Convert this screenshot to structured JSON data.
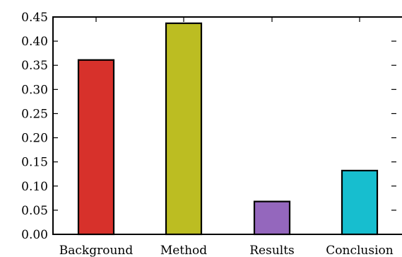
{
  "chart_data": {
    "type": "bar",
    "categories": [
      "Background",
      "Method",
      "Results",
      "Conclusion"
    ],
    "values": [
      0.361,
      0.437,
      0.068,
      0.132
    ],
    "colors": [
      "#d7312b",
      "#bcbd22",
      "#9467bd",
      "#17becf"
    ],
    "ylim": [
      0,
      0.45
    ],
    "yticks": [
      "0.00",
      "0.05",
      "0.10",
      "0.15",
      "0.20",
      "0.25",
      "0.30",
      "0.35",
      "0.40",
      "0.45"
    ],
    "title": "",
    "xlabel": "",
    "ylabel": "",
    "grid": false,
    "legend": "none"
  }
}
